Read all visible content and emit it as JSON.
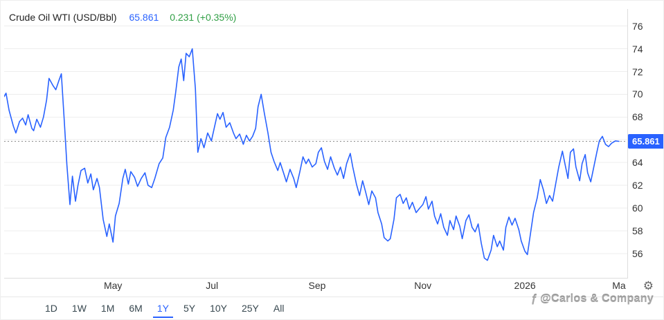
{
  "header": {
    "symbol": "Crude Oil WTI (USD/Bbl)",
    "price": "65.861",
    "change": "0.231 (+0.35%)"
  },
  "colors": {
    "accent": "#2962FF",
    "line": "#2962FF",
    "green": "#2f9e44"
  },
  "icons": {
    "settings": "⚙",
    "watermark_logo": "ƒ"
  },
  "watermark": {
    "text": "@Carlos & Company"
  },
  "toolbar": {
    "ranges": [
      "1D",
      "1W",
      "1M",
      "6M",
      "1Y",
      "5Y",
      "10Y",
      "25Y",
      "All"
    ],
    "active": "1Y"
  },
  "chart_data": {
    "type": "line",
    "title": "Crude Oil WTI (USD/Bbl)",
    "ylabel": "USD/Bbl",
    "ylim": [
      53.8,
      77.5
    ],
    "y_ticks": [
      56,
      58,
      60,
      62,
      64,
      66,
      68,
      70,
      72,
      74,
      76
    ],
    "grid": "horizontal",
    "legend": "none",
    "current_price": 65.861,
    "current_price_label": "65.861",
    "x_tick_labels": [
      {
        "label": "May",
        "t": 0.177
      },
      {
        "label": "Jul",
        "t": 0.338
      },
      {
        "label": "Sep",
        "t": 0.509
      },
      {
        "label": "Nov",
        "t": 0.681
      },
      {
        "label": "2026",
        "t": 0.847
      },
      {
        "label": "Ma",
        "t": 1.0
      }
    ],
    "points": [
      [
        0.0,
        69.8
      ],
      [
        0.003,
        70.1
      ],
      [
        0.008,
        68.6
      ],
      [
        0.015,
        67.2
      ],
      [
        0.019,
        66.6
      ],
      [
        0.025,
        67.6
      ],
      [
        0.03,
        67.9
      ],
      [
        0.035,
        67.3
      ],
      [
        0.039,
        68.2
      ],
      [
        0.045,
        67.0
      ],
      [
        0.048,
        66.8
      ],
      [
        0.053,
        67.8
      ],
      [
        0.059,
        67.1
      ],
      [
        0.064,
        68.0
      ],
      [
        0.069,
        69.5
      ],
      [
        0.073,
        71.4
      ],
      [
        0.079,
        70.8
      ],
      [
        0.084,
        70.4
      ],
      [
        0.089,
        71.2
      ],
      [
        0.093,
        71.8
      ],
      [
        0.098,
        67.5
      ],
      [
        0.102,
        63.8
      ],
      [
        0.107,
        60.3
      ],
      [
        0.111,
        62.8
      ],
      [
        0.116,
        60.6
      ],
      [
        0.12,
        62.0
      ],
      [
        0.125,
        63.3
      ],
      [
        0.131,
        63.5
      ],
      [
        0.136,
        62.2
      ],
      [
        0.141,
        63.0
      ],
      [
        0.145,
        61.6
      ],
      [
        0.151,
        62.6
      ],
      [
        0.155,
        61.8
      ],
      [
        0.161,
        59.0
      ],
      [
        0.167,
        57.5
      ],
      [
        0.171,
        58.6
      ],
      [
        0.177,
        57.0
      ],
      [
        0.181,
        59.3
      ],
      [
        0.187,
        60.4
      ],
      [
        0.193,
        62.6
      ],
      [
        0.197,
        63.4
      ],
      [
        0.202,
        62.1
      ],
      [
        0.206,
        63.2
      ],
      [
        0.212,
        62.7
      ],
      [
        0.217,
        61.9
      ],
      [
        0.223,
        62.6
      ],
      [
        0.229,
        63.1
      ],
      [
        0.234,
        62.0
      ],
      [
        0.24,
        61.8
      ],
      [
        0.245,
        62.6
      ],
      [
        0.252,
        63.9
      ],
      [
        0.258,
        64.4
      ],
      [
        0.263,
        66.2
      ],
      [
        0.269,
        67.1
      ],
      [
        0.275,
        68.6
      ],
      [
        0.279,
        70.2
      ],
      [
        0.284,
        72.4
      ],
      [
        0.288,
        73.1
      ],
      [
        0.292,
        71.2
      ],
      [
        0.296,
        73.6
      ],
      [
        0.301,
        73.3
      ],
      [
        0.306,
        74.0
      ],
      [
        0.311,
        70.5
      ],
      [
        0.315,
        64.9
      ],
      [
        0.32,
        66.1
      ],
      [
        0.325,
        65.3
      ],
      [
        0.331,
        66.6
      ],
      [
        0.337,
        65.9
      ],
      [
        0.342,
        67.1
      ],
      [
        0.347,
        68.3
      ],
      [
        0.351,
        67.8
      ],
      [
        0.356,
        68.4
      ],
      [
        0.361,
        67.1
      ],
      [
        0.367,
        67.5
      ],
      [
        0.373,
        66.6
      ],
      [
        0.377,
        66.1
      ],
      [
        0.383,
        66.5
      ],
      [
        0.389,
        65.6
      ],
      [
        0.394,
        66.4
      ],
      [
        0.399,
        65.9
      ],
      [
        0.404,
        66.3
      ],
      [
        0.409,
        67.0
      ],
      [
        0.413,
        68.9
      ],
      [
        0.418,
        70.0
      ],
      [
        0.423,
        68.4
      ],
      [
        0.429,
        66.6
      ],
      [
        0.434,
        64.9
      ],
      [
        0.439,
        64.1
      ],
      [
        0.445,
        63.3
      ],
      [
        0.449,
        64.0
      ],
      [
        0.455,
        63.0
      ],
      [
        0.459,
        62.3
      ],
      [
        0.465,
        63.4
      ],
      [
        0.471,
        62.6
      ],
      [
        0.475,
        61.8
      ],
      [
        0.481,
        63.2
      ],
      [
        0.486,
        64.5
      ],
      [
        0.491,
        63.9
      ],
      [
        0.495,
        64.3
      ],
      [
        0.501,
        63.6
      ],
      [
        0.507,
        63.9
      ],
      [
        0.511,
        64.9
      ],
      [
        0.516,
        65.3
      ],
      [
        0.521,
        64.1
      ],
      [
        0.526,
        63.4
      ],
      [
        0.531,
        64.5
      ],
      [
        0.537,
        63.5
      ],
      [
        0.542,
        62.9
      ],
      [
        0.547,
        63.6
      ],
      [
        0.552,
        62.6
      ],
      [
        0.557,
        63.9
      ],
      [
        0.563,
        64.8
      ],
      [
        0.567,
        63.6
      ],
      [
        0.573,
        62.1
      ],
      [
        0.578,
        61.1
      ],
      [
        0.583,
        62.4
      ],
      [
        0.588,
        61.4
      ],
      [
        0.593,
        60.3
      ],
      [
        0.598,
        61.5
      ],
      [
        0.604,
        60.9
      ],
      [
        0.608,
        59.6
      ],
      [
        0.614,
        58.6
      ],
      [
        0.618,
        57.4
      ],
      [
        0.624,
        57.1
      ],
      [
        0.628,
        57.3
      ],
      [
        0.634,
        59.0
      ],
      [
        0.638,
        60.9
      ],
      [
        0.644,
        61.2
      ],
      [
        0.649,
        60.4
      ],
      [
        0.654,
        60.9
      ],
      [
        0.659,
        59.9
      ],
      [
        0.664,
        60.5
      ],
      [
        0.67,
        59.6
      ],
      [
        0.676,
        60.0
      ],
      [
        0.681,
        60.3
      ],
      [
        0.686,
        61.0
      ],
      [
        0.69,
        59.9
      ],
      [
        0.696,
        60.6
      ],
      [
        0.7,
        59.3
      ],
      [
        0.705,
        58.6
      ],
      [
        0.71,
        59.5
      ],
      [
        0.715,
        58.3
      ],
      [
        0.721,
        57.6
      ],
      [
        0.725,
        58.9
      ],
      [
        0.731,
        58.1
      ],
      [
        0.735,
        59.3
      ],
      [
        0.741,
        58.4
      ],
      [
        0.745,
        57.3
      ],
      [
        0.751,
        58.9
      ],
      [
        0.756,
        59.4
      ],
      [
        0.761,
        58.3
      ],
      [
        0.766,
        57.9
      ],
      [
        0.771,
        58.6
      ],
      [
        0.776,
        56.9
      ],
      [
        0.781,
        55.6
      ],
      [
        0.786,
        55.4
      ],
      [
        0.792,
        56.3
      ],
      [
        0.796,
        57.6
      ],
      [
        0.802,
        56.6
      ],
      [
        0.806,
        57.1
      ],
      [
        0.812,
        56.3
      ],
      [
        0.816,
        58.3
      ],
      [
        0.821,
        59.2
      ],
      [
        0.826,
        58.5
      ],
      [
        0.831,
        59.1
      ],
      [
        0.837,
        58.1
      ],
      [
        0.841,
        57.1
      ],
      [
        0.847,
        56.2
      ],
      [
        0.851,
        55.9
      ],
      [
        0.857,
        58.1
      ],
      [
        0.861,
        59.6
      ],
      [
        0.867,
        60.9
      ],
      [
        0.872,
        62.5
      ],
      [
        0.877,
        61.6
      ],
      [
        0.882,
        60.4
      ],
      [
        0.887,
        61.1
      ],
      [
        0.892,
        60.6
      ],
      [
        0.897,
        62.1
      ],
      [
        0.902,
        63.6
      ],
      [
        0.908,
        65.0
      ],
      [
        0.912,
        63.9
      ],
      [
        0.917,
        62.6
      ],
      [
        0.921,
        64.9
      ],
      [
        0.926,
        65.2
      ],
      [
        0.93,
        63.6
      ],
      [
        0.936,
        62.4
      ],
      [
        0.94,
        63.9
      ],
      [
        0.945,
        64.7
      ],
      [
        0.949,
        63.1
      ],
      [
        0.954,
        62.3
      ],
      [
        0.959,
        63.6
      ],
      [
        0.964,
        64.9
      ],
      [
        0.968,
        65.9
      ],
      [
        0.973,
        66.3
      ],
      [
        0.978,
        65.6
      ],
      [
        0.983,
        65.4
      ],
      [
        0.988,
        65.7
      ],
      [
        0.994,
        65.9
      ],
      [
        1.0,
        65.861
      ]
    ]
  }
}
